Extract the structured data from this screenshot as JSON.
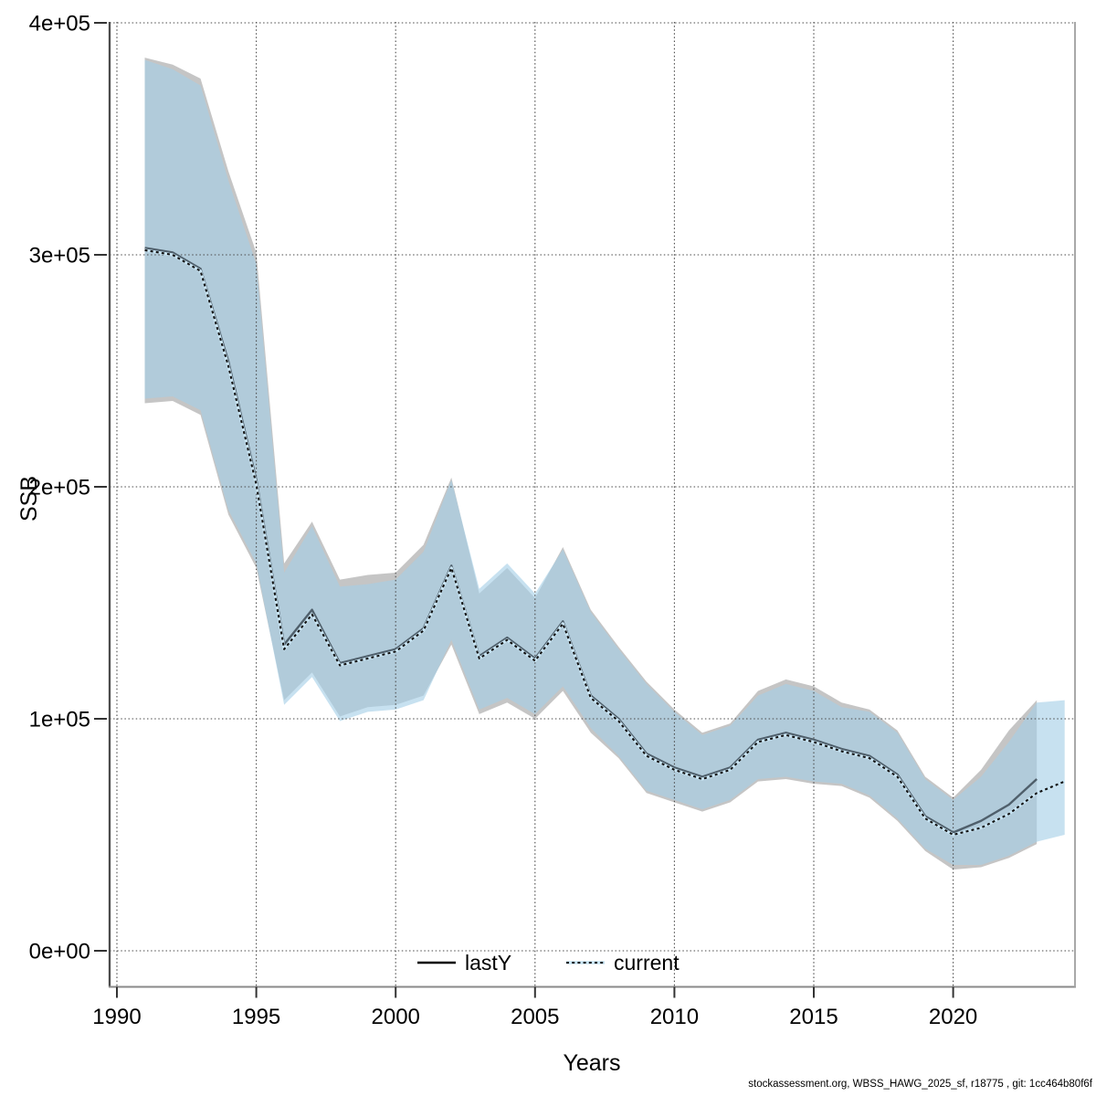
{
  "figure": {
    "ylabel": "SSB",
    "xlabel": "Years",
    "footer": "stockassessment.org, WBSS_HAWG_2025_sf, r18775 , git: 1cc464b80f6f"
  },
  "legend": {
    "items": [
      {
        "label": "lastY",
        "style": "solid-black"
      },
      {
        "label": "current",
        "style": "dotted-blue"
      }
    ]
  },
  "colors": {
    "band_lastY": "#a9a9a9",
    "band_lastY_opacity": 0.68,
    "band_current": "#a5cfe6",
    "band_current_opacity": 0.62,
    "line_lastY": "#4f5f6b",
    "line_current_base": "#c9e5f4",
    "line_current_dash": "#111111",
    "grid": "#4a4a4a",
    "axis_left": "#4c4c4c",
    "axis_bottom": "#8a8a8a",
    "axis_right": "#a8a8a8",
    "tick": "#333333",
    "background": "#ffffff"
  },
  "chart_data": {
    "type": "line",
    "title": "",
    "xlabel": "Years",
    "ylabel": "SSB",
    "grid": "dotted",
    "legend_position": "bottom-center",
    "xlim": [
      1989.74,
      2024.35
    ],
    "ylim": [
      0,
      416000
    ],
    "x_ticks": [
      1990,
      1995,
      2000,
      2005,
      2010,
      2015,
      2020
    ],
    "y_ticks": [
      {
        "value": 0,
        "label": "0e+00"
      },
      {
        "value": 100000,
        "label": "1e+05"
      },
      {
        "value": 200000,
        "label": "2e+05"
      },
      {
        "value": 300000,
        "label": "3e+05"
      },
      {
        "value": 400000,
        "label": "4e+05"
      }
    ],
    "series": [
      {
        "name": "lastY",
        "kind": "mean-with-confidence-band",
        "years": [
          1991,
          1992,
          1993,
          1994,
          1995,
          1996,
          1997,
          1998,
          1999,
          2000,
          2001,
          2002,
          2003,
          2004,
          2005,
          2006,
          2007,
          2008,
          2009,
          2010,
          2011,
          2012,
          2013,
          2014,
          2015,
          2016,
          2017,
          2018,
          2019,
          2020,
          2021,
          2022,
          2023
        ],
        "mean": [
          303000,
          301000,
          294000,
          254000,
          203000,
          132000,
          147000,
          124000,
          127000,
          130000,
          139000,
          166000,
          127000,
          135000,
          126000,
          142000,
          110000,
          100000,
          85000,
          79000,
          75000,
          79000,
          91000,
          94000,
          91000,
          87000,
          84000,
          76000,
          58000,
          51000,
          56000,
          63000,
          74000
        ],
        "hi": [
          385000,
          382000,
          376000,
          336000,
          301000,
          167000,
          185000,
          160000,
          162000,
          163000,
          175000,
          204000,
          154000,
          165000,
          152000,
          174000,
          147000,
          131000,
          116000,
          104000,
          94000,
          98000,
          112000,
          117000,
          114000,
          107000,
          104000,
          95000,
          75000,
          66000,
          78000,
          95000,
          108000
        ],
        "lo": [
          236000,
          237000,
          231000,
          188000,
          165000,
          108000,
          120000,
          101000,
          105000,
          106000,
          110000,
          132000,
          102000,
          107000,
          100000,
          112000,
          94000,
          83000,
          68000,
          64000,
          60000,
          64000,
          73000,
          74000,
          72000,
          71000,
          66000,
          56000,
          43000,
          35000,
          36000,
          40000,
          46000
        ]
      },
      {
        "name": "current",
        "kind": "mean-with-confidence-band",
        "years": [
          1991,
          1992,
          1993,
          1994,
          1995,
          1996,
          1997,
          1998,
          1999,
          2000,
          2001,
          2002,
          2003,
          2004,
          2005,
          2006,
          2007,
          2008,
          2009,
          2010,
          2011,
          2012,
          2013,
          2014,
          2015,
          2016,
          2017,
          2018,
          2019,
          2020,
          2021,
          2022,
          2023,
          2024
        ],
        "mean": [
          302000,
          300000,
          293000,
          252000,
          201000,
          130000,
          145000,
          123000,
          126000,
          129000,
          138000,
          165000,
          126000,
          134000,
          125000,
          141000,
          109000,
          99000,
          84000,
          78000,
          74000,
          78000,
          90000,
          93000,
          90000,
          86000,
          83000,
          75000,
          57000,
          50000,
          53000,
          59000,
          68000,
          73000
        ],
        "hi": [
          384000,
          380000,
          373000,
          332000,
          296000,
          163000,
          183000,
          157000,
          158000,
          160000,
          172000,
          203000,
          156000,
          167000,
          154000,
          173000,
          146000,
          130000,
          115000,
          103000,
          93000,
          97000,
          110000,
          115000,
          112000,
          105000,
          103000,
          94000,
          74000,
          65000,
          75000,
          90000,
          107000,
          108000
        ],
        "lo": [
          238000,
          239000,
          233000,
          190000,
          167000,
          106000,
          118000,
          99000,
          103000,
          104000,
          108000,
          134000,
          104000,
          109000,
          102000,
          114000,
          96000,
          84000,
          69000,
          65000,
          61000,
          65000,
          74000,
          75000,
          73000,
          72000,
          67000,
          57000,
          44000,
          37000,
          37000,
          41000,
          47000,
          50000
        ]
      }
    ]
  }
}
